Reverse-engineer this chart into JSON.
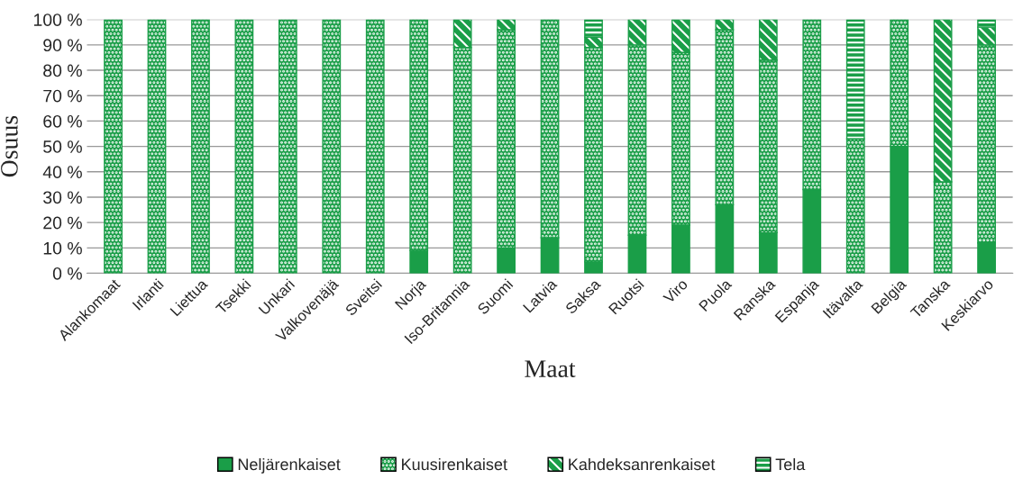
{
  "chart_data": {
    "type": "bar",
    "stacked": true,
    "xlabel": "Maat",
    "ylabel": "Osuus",
    "categories": [
      "Alankomaat",
      "Irlanti",
      "Liettua",
      "Tsekki",
      "Unkari",
      "Valkovenäjä",
      "Sveitsi",
      "Norja",
      "Iso-Britannia",
      "Suomi",
      "Latvia",
      "Saksa",
      "Ruotsi",
      "Viro",
      "Puola",
      "Ranska",
      "Espanja",
      "Itävalta",
      "Belgia",
      "Tanska",
      "Keskiarvo"
    ],
    "series": [
      {
        "name": "Neljärenkaiset",
        "color": "#1a9e48",
        "values": [
          0,
          0,
          0,
          0,
          0,
          0,
          0,
          9,
          0,
          10,
          14,
          4.5,
          15,
          19,
          27,
          16,
          33,
          0,
          50,
          0,
          12
        ]
      },
      {
        "name": "Kuusirenkaiset",
        "color": "#1a9e48",
        "values": [
          100,
          100,
          100,
          100,
          100,
          100,
          100,
          91,
          89,
          86,
          86,
          84.5,
          75,
          68,
          69,
          68,
          67,
          53,
          50,
          36,
          78
        ]
      },
      {
        "name": "Kahdeksanrenkaiset",
        "color": "#1a9e48",
        "values": [
          0,
          0,
          0,
          0,
          0,
          0,
          0,
          0,
          11,
          4,
          0,
          4,
          10,
          13,
          4,
          16,
          0,
          0,
          0,
          64,
          7
        ]
      },
      {
        "name": "Tela",
        "color": "#1a9e48",
        "values": [
          0,
          0,
          0,
          0,
          0,
          0,
          0,
          0,
          0,
          0,
          0,
          7,
          0,
          0,
          0,
          0,
          0,
          47,
          0,
          0,
          3
        ]
      }
    ],
    "ylim": [
      0,
      100
    ],
    "yticks": [
      {
        "value": 0,
        "label": "0 %"
      },
      {
        "value": 10,
        "label": "10 %"
      },
      {
        "value": 20,
        "label": "20 %"
      },
      {
        "value": 30,
        "label": "30 %"
      },
      {
        "value": 40,
        "label": "40 %"
      },
      {
        "value": 50,
        "label": "50 %"
      },
      {
        "value": 60,
        "label": "60 %"
      },
      {
        "value": 70,
        "label": "70 %"
      },
      {
        "value": 80,
        "label": "80 %"
      },
      {
        "value": 90,
        "label": "90 %"
      },
      {
        "value": 100,
        "label": "100 %"
      }
    ],
    "grid": "y",
    "legend": "bottom"
  }
}
